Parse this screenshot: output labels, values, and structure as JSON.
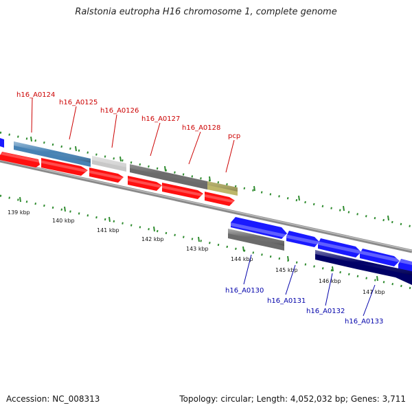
{
  "title": "Ralstonia eutropha H16 chromosome 1, complete genome",
  "footer": {
    "accession": "Accession: NC_008313",
    "stats": "Topology: circular; Length: 4,052,032 bp; Genes: 3,711"
  },
  "tick_labels": [
    "139 kbp",
    "140 kbp",
    "141 kbp",
    "142 kbp",
    "143 kbp",
    "144 kbp",
    "145 kbp",
    "146 kbp",
    "147 kbp"
  ],
  "gene_labels_top": [
    "h16_A0124",
    "h16_A0125",
    "h16_A0126",
    "h16_A0127",
    "h16_A0128",
    "pcp"
  ],
  "gene_labels_bottom": [
    "h16_A0130",
    "h16_A0131",
    "h16_A0132",
    "h16_A0133"
  ],
  "colors": {
    "label_top": "#cc0000",
    "label_bottom": "#0000aa",
    "tick_green": "#2e8b2e",
    "backbone": "#888888",
    "red": "#ff1010",
    "blue": "#1a1aff",
    "navy": "#000066",
    "steel": "#4682b4",
    "light_gray": "#c8c8c8",
    "dark_gray": "#6b6b6b",
    "khaki": "#bdb76b"
  }
}
